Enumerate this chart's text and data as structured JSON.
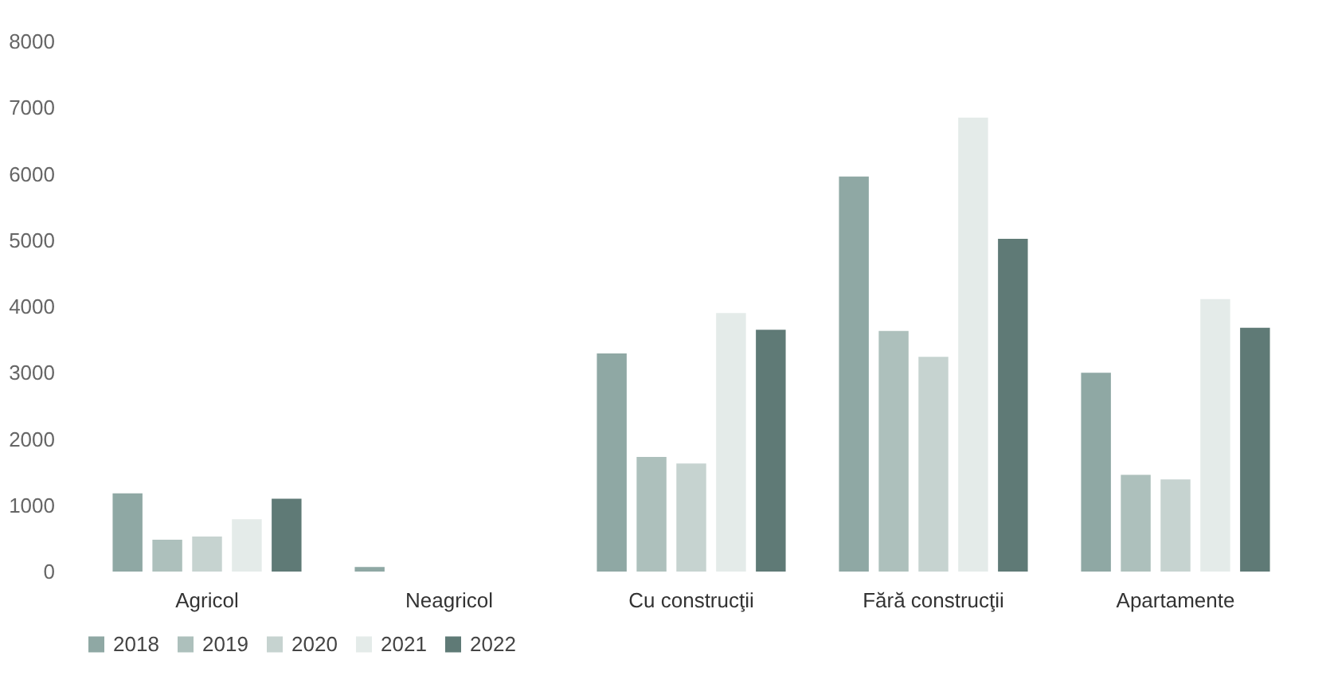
{
  "chart_data": {
    "type": "bar",
    "categories": [
      "Agricol",
      "Neagricol",
      "Cu construcţii",
      "Fără construcţii",
      "Apartamente"
    ],
    "series": [
      {
        "name": "2018",
        "color": "#8fa8a4",
        "values": [
          1180,
          70,
          3290,
          5960,
          3000
        ]
      },
      {
        "name": "2019",
        "color": "#adc0bc",
        "values": [
          480,
          null,
          1730,
          3630,
          1460
        ]
      },
      {
        "name": "2020",
        "color": "#c6d3d0",
        "values": [
          530,
          null,
          1630,
          3240,
          1390
        ]
      },
      {
        "name": "2021",
        "color": "#e4ebe9",
        "values": [
          790,
          null,
          3900,
          6850,
          4110
        ]
      },
      {
        "name": "2022",
        "color": "#5f7a76",
        "values": [
          1100,
          null,
          3650,
          5020,
          3680
        ]
      }
    ],
    "ylim": [
      0,
      8000
    ],
    "yticks": [
      0,
      1000,
      2000,
      3000,
      4000,
      5000,
      6000,
      7000,
      8000
    ],
    "grid": false,
    "legend": "bottom"
  }
}
